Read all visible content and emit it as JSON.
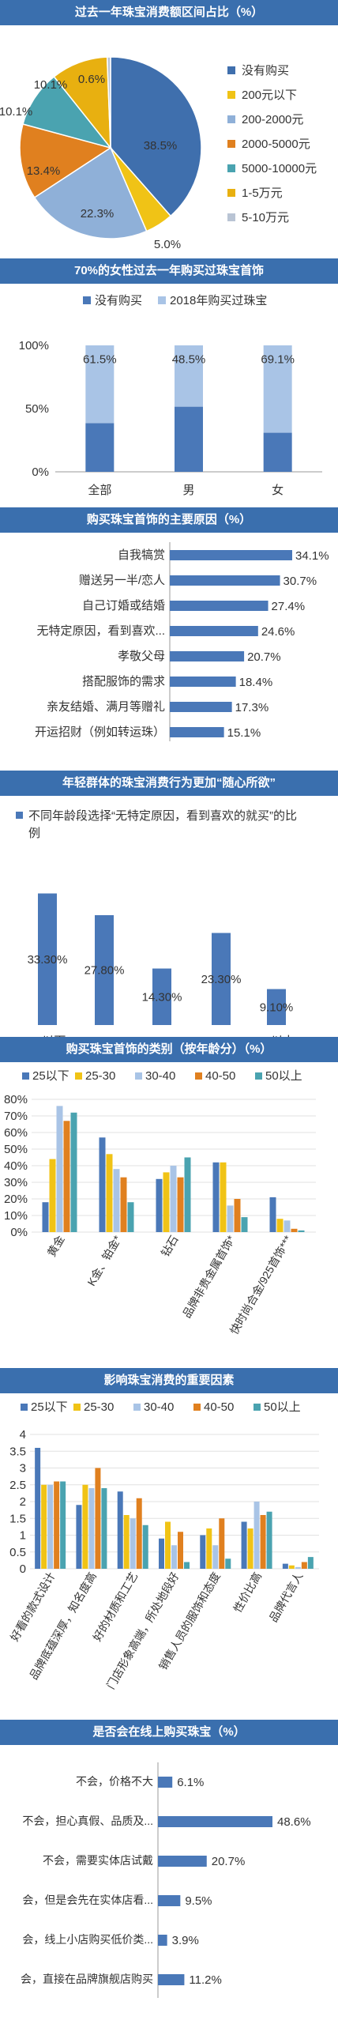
{
  "charts": [
    {
      "title": "过去一年珠宝消费额区间占比（%）",
      "chart_data": {
        "type": "pie",
        "slices": [
          {
            "label": "没有购买",
            "value": 38.5,
            "color": "#3f6fad",
            "label_text": "38.5%"
          },
          {
            "label": "200元以下",
            "value": 5.0,
            "color": "#f0c316",
            "label_text": "5.0%"
          },
          {
            "label": "200-2000元",
            "value": 22.3,
            "color": "#8fb0d8",
            "label_text": "22.3%"
          },
          {
            "label": "2000-5000元",
            "value": 13.4,
            "color": "#e0801f",
            "label_text": "13.4%"
          },
          {
            "label": "5000-10000元",
            "value": 10.1,
            "color": "#4aa3b0",
            "label_text": "10.1%"
          },
          {
            "label": "1-5万元",
            "value": 10.1,
            "color": "#e8b010",
            "label_text": "10.1%"
          },
          {
            "label": "5-10万元",
            "value": 0.6,
            "color": "#b9c4d4",
            "label_text": "0.6%"
          }
        ]
      }
    },
    {
      "title": "70%的女性过去一年购买过珠宝首饰",
      "chart_data": {
        "type": "bar",
        "stacked": true,
        "categories": [
          "全部",
          "男",
          "女"
        ],
        "series": [
          {
            "name": "没有购买",
            "values": [
              38.5,
              51.5,
              30.9
            ],
            "color": "#4a78b8"
          },
          {
            "name": "2018年购买过珠宝",
            "values": [
              61.5,
              48.5,
              69.1
            ],
            "color": "#a9c4e6"
          }
        ],
        "data_labels": [
          "61.5%",
          "48.5%",
          "69.1%"
        ],
        "ylim": [
          0,
          100
        ],
        "yticks": [
          "0%",
          "50%",
          "100%"
        ]
      }
    },
    {
      "title": "购买珠宝首饰的主要原因（%）",
      "chart_data": {
        "type": "bar",
        "orientation": "horizontal",
        "categories": [
          "自我犒赏",
          "赠送另一半/恋人",
          "自己订婚或结婚",
          "无特定原因，看到喜欢...",
          "孝敬父母",
          "搭配服饰的需求",
          "亲友结婚、满月等赠礼",
          "开运招财（例如转运珠）"
        ],
        "values": [
          34.1,
          30.7,
          27.4,
          24.6,
          20.7,
          18.4,
          17.3,
          15.1
        ],
        "data_labels": [
          "34.1%",
          "30.7%",
          "27.4%",
          "24.6%",
          "20.7%",
          "18.4%",
          "17.3%",
          "15.1%"
        ],
        "color": "#4a78b8"
      }
    },
    {
      "title": "年轻群体的珠宝消费行为更加“随心所欲”",
      "chart_data": {
        "type": "bar",
        "categories": [
          "25以下",
          "25-30",
          "30-40",
          "40-50",
          "50以上"
        ],
        "series": [
          {
            "name": "不同年龄段选择“无特定原因，看到喜欢的就买”的比例",
            "values": [
              33.3,
              27.8,
              14.3,
              23.3,
              9.1
            ]
          }
        ],
        "data_labels": [
          "33.30%",
          "27.80%",
          "14.30%",
          "23.30%",
          "9.10%"
        ],
        "color": "#4a78b8"
      }
    },
    {
      "title": "购买珠宝首饰的类别（按年龄分）（%）",
      "chart_data": {
        "type": "bar",
        "categories": [
          "黄金",
          "K金、铂金*",
          "钻石",
          "品牌非贵金属首饰*",
          "快时尚合金/925首饰***"
        ],
        "series": [
          {
            "name": "25以下",
            "values": [
              18,
              57,
              32,
              42,
              21
            ],
            "color": "#4a78b8"
          },
          {
            "name": "25-30",
            "values": [
              44,
              47,
              36,
              42,
              8
            ],
            "color": "#f0c316"
          },
          {
            "name": "30-40",
            "values": [
              76,
              38,
              40,
              16,
              7
            ],
            "color": "#a9c4e6"
          },
          {
            "name": "40-50",
            "values": [
              67,
              33,
              33,
              20,
              2
            ],
            "color": "#e0801f"
          },
          {
            "name": "50以上",
            "values": [
              72,
              18,
              45,
              9,
              1
            ],
            "color": "#4aa3b0"
          }
        ],
        "ylim": [
          0,
          80
        ],
        "yticks": [
          "0%",
          "10%",
          "20%",
          "30%",
          "40%",
          "50%",
          "60%",
          "70%",
          "80%"
        ]
      }
    },
    {
      "title": "影响珠宝消费的重要因素",
      "chart_data": {
        "type": "bar",
        "categories": [
          "好看的款式设计",
          "品牌底蕴深厚，知名度高",
          "好的材质和工艺",
          "门店形象高端，所处地段好",
          "销售人员的服饰和态度",
          "性价比高",
          "品牌代言人"
        ],
        "series": [
          {
            "name": "25以下",
            "values": [
              3.6,
              1.9,
              2.3,
              0.9,
              1.0,
              1.4,
              0.15
            ],
            "color": "#4a78b8"
          },
          {
            "name": "25-30",
            "values": [
              2.5,
              2.5,
              1.6,
              1.4,
              1.2,
              1.2,
              0.1
            ],
            "color": "#f0c316"
          },
          {
            "name": "30-40",
            "values": [
              2.5,
              2.4,
              1.5,
              0.7,
              0.7,
              2.0,
              0.05
            ],
            "color": "#a9c4e6"
          },
          {
            "name": "40-50",
            "values": [
              2.6,
              3.0,
              2.1,
              1.1,
              1.5,
              1.6,
              0.2
            ],
            "color": "#e0801f"
          },
          {
            "name": "50以上",
            "values": [
              2.6,
              2.4,
              1.3,
              0.2,
              0.3,
              1.7,
              0.35
            ],
            "color": "#4aa3b0"
          }
        ],
        "ylim": [
          0,
          4
        ],
        "yticks": [
          "0",
          "0.5",
          "1",
          "1.5",
          "2",
          "2.5",
          "3",
          "3.5",
          "4"
        ]
      }
    },
    {
      "title": "是否会在线上购买珠宝（%）",
      "chart_data": {
        "type": "bar",
        "orientation": "horizontal",
        "categories": [
          "不会，价格不大",
          "不会，担心真假、品质及...",
          "不会，需要实体店试戴",
          "会，但是会先在实体店看...",
          "会，线上小店购买低价类...",
          "会，直接在品牌旗舰店购买"
        ],
        "values": [
          6.1,
          48.6,
          20.7,
          9.5,
          3.9,
          11.2
        ],
        "data_labels": [
          "6.1%",
          "48.6%",
          "20.7%",
          "9.5%",
          "3.9%",
          "11.2%"
        ],
        "color": "#4a78b8"
      }
    }
  ]
}
